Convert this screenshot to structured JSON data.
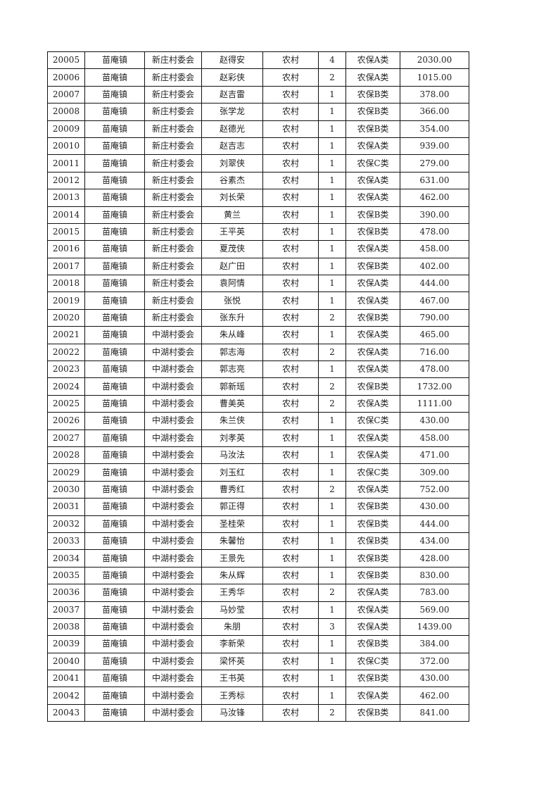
{
  "table": {
    "rows": [
      [
        "20005",
        "苗庵镇",
        "新庄村委会",
        "赵得安",
        "农村",
        "4",
        "农保A类",
        "2030.00"
      ],
      [
        "20006",
        "苗庵镇",
        "新庄村委会",
        "赵彩侠",
        "农村",
        "2",
        "农保A类",
        "1015.00"
      ],
      [
        "20007",
        "苗庵镇",
        "新庄村委会",
        "赵吉雷",
        "农村",
        "1",
        "农保B类",
        "378.00"
      ],
      [
        "20008",
        "苗庵镇",
        "新庄村委会",
        "张学龙",
        "农村",
        "1",
        "农保B类",
        "366.00"
      ],
      [
        "20009",
        "苗庵镇",
        "新庄村委会",
        "赵德光",
        "农村",
        "1",
        "农保B类",
        "354.00"
      ],
      [
        "20010",
        "苗庵镇",
        "新庄村委会",
        "赵吉志",
        "农村",
        "1",
        "农保A类",
        "939.00"
      ],
      [
        "20011",
        "苗庵镇",
        "新庄村委会",
        "刘翠侠",
        "农村",
        "1",
        "农保C类",
        "279.00"
      ],
      [
        "20012",
        "苗庵镇",
        "新庄村委会",
        "谷素杰",
        "农村",
        "1",
        "农保A类",
        "631.00"
      ],
      [
        "20013",
        "苗庵镇",
        "新庄村委会",
        "刘长荣",
        "农村",
        "1",
        "农保A类",
        "462.00"
      ],
      [
        "20014",
        "苗庵镇",
        "新庄村委会",
        "黄兰",
        "农村",
        "1",
        "农保B类",
        "390.00"
      ],
      [
        "20015",
        "苗庵镇",
        "新庄村委会",
        "王平英",
        "农村",
        "1",
        "农保B类",
        "478.00"
      ],
      [
        "20016",
        "苗庵镇",
        "新庄村委会",
        "夏茂侠",
        "农村",
        "1",
        "农保A类",
        "458.00"
      ],
      [
        "20017",
        "苗庵镇",
        "新庄村委会",
        "赵广田",
        "农村",
        "1",
        "农保B类",
        "402.00"
      ],
      [
        "20018",
        "苗庵镇",
        "新庄村委会",
        "袁阿情",
        "农村",
        "1",
        "农保A类",
        "444.00"
      ],
      [
        "20019",
        "苗庵镇",
        "新庄村委会",
        "张悦",
        "农村",
        "1",
        "农保A类",
        "467.00"
      ],
      [
        "20020",
        "苗庵镇",
        "新庄村委会",
        "张东升",
        "农村",
        "2",
        "农保B类",
        "790.00"
      ],
      [
        "20021",
        "苗庵镇",
        "中湖村委会",
        "朱从峰",
        "农村",
        "1",
        "农保A类",
        "465.00"
      ],
      [
        "20022",
        "苗庵镇",
        "中湖村委会",
        "郭志海",
        "农村",
        "2",
        "农保A类",
        "716.00"
      ],
      [
        "20023",
        "苗庵镇",
        "中湖村委会",
        "郭志亮",
        "农村",
        "1",
        "农保A类",
        "478.00"
      ],
      [
        "20024",
        "苗庵镇",
        "中湖村委会",
        "郭新瑶",
        "农村",
        "2",
        "农保B类",
        "1732.00"
      ],
      [
        "20025",
        "苗庵镇",
        "中湖村委会",
        "曹美英",
        "农村",
        "2",
        "农保A类",
        "1111.00"
      ],
      [
        "20026",
        "苗庵镇",
        "中湖村委会",
        "朱兰侠",
        "农村",
        "1",
        "农保C类",
        "430.00"
      ],
      [
        "20027",
        "苗庵镇",
        "中湖村委会",
        "刘孝英",
        "农村",
        "1",
        "农保A类",
        "458.00"
      ],
      [
        "20028",
        "苗庵镇",
        "中湖村委会",
        "马汝法",
        "农村",
        "1",
        "农保A类",
        "471.00"
      ],
      [
        "20029",
        "苗庵镇",
        "中湖村委会",
        "刘玉红",
        "农村",
        "1",
        "农保C类",
        "309.00"
      ],
      [
        "20030",
        "苗庵镇",
        "中湖村委会",
        "曹秀红",
        "农村",
        "2",
        "农保A类",
        "752.00"
      ],
      [
        "20031",
        "苗庵镇",
        "中湖村委会",
        "郭正得",
        "农村",
        "1",
        "农保B类",
        "430.00"
      ],
      [
        "20032",
        "苗庵镇",
        "中湖村委会",
        "圣桂荣",
        "农村",
        "1",
        "农保B类",
        "444.00"
      ],
      [
        "20033",
        "苗庵镇",
        "中湖村委会",
        "朱馨怡",
        "农村",
        "1",
        "农保B类",
        "434.00"
      ],
      [
        "20034",
        "苗庵镇",
        "中湖村委会",
        "王景先",
        "农村",
        "1",
        "农保B类",
        "428.00"
      ],
      [
        "20035",
        "苗庵镇",
        "中湖村委会",
        "朱从辉",
        "农村",
        "1",
        "农保B类",
        "830.00"
      ],
      [
        "20036",
        "苗庵镇",
        "中湖村委会",
        "王秀华",
        "农村",
        "2",
        "农保A类",
        "783.00"
      ],
      [
        "20037",
        "苗庵镇",
        "中湖村委会",
        "马妙莹",
        "农村",
        "1",
        "农保A类",
        "569.00"
      ],
      [
        "20038",
        "苗庵镇",
        "中湖村委会",
        "朱朋",
        "农村",
        "3",
        "农保A类",
        "1439.00"
      ],
      [
        "20039",
        "苗庵镇",
        "中湖村委会",
        "李新荣",
        "农村",
        "1",
        "农保B类",
        "384.00"
      ],
      [
        "20040",
        "苗庵镇",
        "中湖村委会",
        "梁怀英",
        "农村",
        "1",
        "农保C类",
        "372.00"
      ],
      [
        "20041",
        "苗庵镇",
        "中湖村委会",
        "王书英",
        "农村",
        "1",
        "农保B类",
        "430.00"
      ],
      [
        "20042",
        "苗庵镇",
        "中湖村委会",
        "王秀标",
        "农村",
        "1",
        "农保A类",
        "462.00"
      ],
      [
        "20043",
        "苗庵镇",
        "中湖村委会",
        "马汝锋",
        "农村",
        "2",
        "农保B类",
        "841.00"
      ]
    ]
  }
}
